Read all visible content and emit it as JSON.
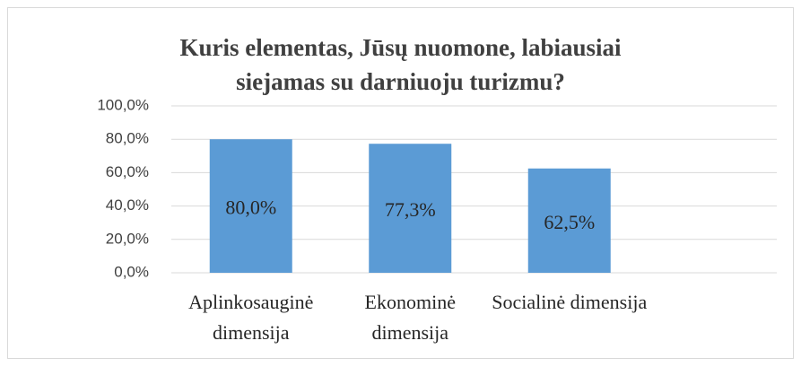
{
  "chart_data": {
    "type": "bar",
    "title": "Kuris elementas, Jūsų nuomone, labiausiai siejamas su darniuoju turizmu?",
    "categories": [
      "Aplinkosauginė dimensija",
      "Ekonominė dimensija",
      "Socialinė dimensija"
    ],
    "values": [
      80,
      77.3,
      62.5
    ],
    "value_labels": [
      "80,0%",
      "77,3%",
      "62,5%"
    ],
    "color": "#5b9bd5",
    "ylim": [
      0,
      100
    ],
    "yticks": [
      {
        "value": 0,
        "label": "0,0%"
      },
      {
        "value": 20,
        "label": "20,0%"
      },
      {
        "value": 40,
        "label": "40,0%"
      },
      {
        "value": 60,
        "label": "60,0%"
      },
      {
        "value": 80,
        "label": "80,0%"
      },
      {
        "value": 100,
        "label": "100,0%"
      }
    ],
    "grid": true
  }
}
